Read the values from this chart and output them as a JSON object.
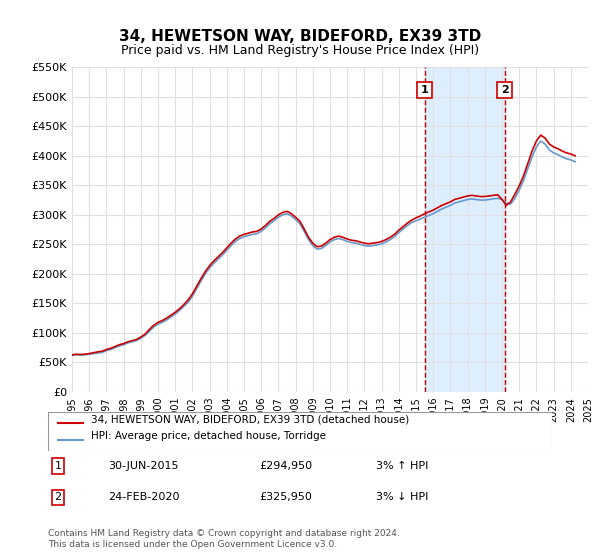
{
  "title": "34, HEWETSON WAY, BIDEFORD, EX39 3TD",
  "subtitle": "Price paid vs. HM Land Registry's House Price Index (HPI)",
  "xlabel": "",
  "ylabel": "",
  "ylim": [
    0,
    550000
  ],
  "yticks": [
    0,
    50000,
    100000,
    150000,
    200000,
    250000,
    300000,
    350000,
    400000,
    450000,
    500000,
    550000
  ],
  "ytick_labels": [
    "£0",
    "£50K",
    "£100K",
    "£150K",
    "£200K",
    "£250K",
    "£300K",
    "£350K",
    "£400K",
    "£450K",
    "£500K",
    "£550K"
  ],
  "background_color": "#ffffff",
  "plot_bg_color": "#ffffff",
  "grid_color": "#e0e0e0",
  "hpi_line_color": "#6699cc",
  "price_line_color": "#cc0000",
  "shade_color": "#ddeeff",
  "vline_color": "#cc0000",
  "marker1_date": 2015.5,
  "marker2_date": 2020.15,
  "legend_label_price": "34, HEWETSON WAY, BIDEFORD, EX39 3TD (detached house)",
  "legend_label_hpi": "HPI: Average price, detached house, Torridge",
  "table_row1": [
    "1",
    "30-JUN-2015",
    "£294,950",
    "3% ↑ HPI"
  ],
  "table_row2": [
    "2",
    "24-FEB-2020",
    "£325,950",
    "3% ↓ HPI"
  ],
  "footer": "Contains HM Land Registry data © Crown copyright and database right 2024.\nThis data is licensed under the Open Government Licence v3.0.",
  "hpi_data": {
    "years": [
      1995.0,
      1995.25,
      1995.5,
      1995.75,
      1996.0,
      1996.25,
      1996.5,
      1996.75,
      1997.0,
      1997.25,
      1997.5,
      1997.75,
      1998.0,
      1998.25,
      1998.5,
      1998.75,
      1999.0,
      1999.25,
      1999.5,
      1999.75,
      2000.0,
      2000.25,
      2000.5,
      2000.75,
      2001.0,
      2001.25,
      2001.5,
      2001.75,
      2002.0,
      2002.25,
      2002.5,
      2002.75,
      2003.0,
      2003.25,
      2003.5,
      2003.75,
      2004.0,
      2004.25,
      2004.5,
      2004.75,
      2005.0,
      2005.25,
      2005.5,
      2005.75,
      2006.0,
      2006.25,
      2006.5,
      2006.75,
      2007.0,
      2007.25,
      2007.5,
      2007.75,
      2008.0,
      2008.25,
      2008.5,
      2008.75,
      2009.0,
      2009.25,
      2009.5,
      2009.75,
      2010.0,
      2010.25,
      2010.5,
      2010.75,
      2011.0,
      2011.25,
      2011.5,
      2011.75,
      2012.0,
      2012.25,
      2012.5,
      2012.75,
      2013.0,
      2013.25,
      2013.5,
      2013.75,
      2014.0,
      2014.25,
      2014.5,
      2014.75,
      2015.0,
      2015.25,
      2015.5,
      2015.75,
      2016.0,
      2016.25,
      2016.5,
      2016.75,
      2017.0,
      2017.25,
      2017.5,
      2017.75,
      2018.0,
      2018.25,
      2018.5,
      2018.75,
      2019.0,
      2019.25,
      2019.5,
      2019.75,
      2020.0,
      2020.25,
      2020.5,
      2020.75,
      2021.0,
      2021.25,
      2021.5,
      2021.75,
      2022.0,
      2022.25,
      2022.5,
      2022.75,
      2023.0,
      2023.25,
      2023.5,
      2023.75,
      2024.0,
      2024.25
    ],
    "values": [
      62000,
      63000,
      62500,
      63000,
      64000,
      65000,
      66000,
      67000,
      70000,
      72000,
      75000,
      78000,
      80000,
      83000,
      85000,
      87000,
      91000,
      96000,
      103000,
      110000,
      115000,
      118000,
      122000,
      127000,
      132000,
      138000,
      145000,
      152000,
      162000,
      175000,
      188000,
      200000,
      210000,
      218000,
      225000,
      232000,
      240000,
      248000,
      255000,
      260000,
      263000,
      265000,
      267000,
      268000,
      272000,
      278000,
      285000,
      290000,
      296000,
      300000,
      302000,
      298000,
      292000,
      285000,
      272000,
      258000,
      248000,
      242000,
      243000,
      248000,
      254000,
      258000,
      260000,
      258000,
      255000,
      253000,
      252000,
      250000,
      248000,
      247000,
      248000,
      249000,
      251000,
      254000,
      258000,
      263000,
      270000,
      276000,
      282000,
      287000,
      290000,
      293000,
      296000,
      299000,
      302000,
      306000,
      310000,
      313000,
      316000,
      320000,
      322000,
      324000,
      326000,
      327000,
      326000,
      325000,
      325000,
      326000,
      327000,
      328000,
      326000,
      320000,
      318000,
      328000,
      342000,
      358000,
      378000,
      398000,
      415000,
      425000,
      420000,
      410000,
      405000,
      402000,
      398000,
      395000,
      393000,
      390000
    ]
  },
  "price_data": {
    "years": [
      1995.0,
      1995.25,
      1995.5,
      1995.75,
      1996.0,
      1996.25,
      1996.5,
      1996.75,
      1997.0,
      1997.25,
      1997.5,
      1997.75,
      1998.0,
      1998.25,
      1998.5,
      1998.75,
      1999.0,
      1999.25,
      1999.5,
      1999.75,
      2000.0,
      2000.25,
      2000.5,
      2000.75,
      2001.0,
      2001.25,
      2001.5,
      2001.75,
      2002.0,
      2002.25,
      2002.5,
      2002.75,
      2003.0,
      2003.25,
      2003.5,
      2003.75,
      2004.0,
      2004.25,
      2004.5,
      2004.75,
      2005.0,
      2005.25,
      2005.5,
      2005.75,
      2006.0,
      2006.25,
      2006.5,
      2006.75,
      2007.0,
      2007.25,
      2007.5,
      2007.75,
      2008.0,
      2008.25,
      2008.5,
      2008.75,
      2009.0,
      2009.25,
      2009.5,
      2009.75,
      2010.0,
      2010.25,
      2010.5,
      2010.75,
      2011.0,
      2011.25,
      2011.5,
      2011.75,
      2012.0,
      2012.25,
      2012.5,
      2012.75,
      2013.0,
      2013.25,
      2013.5,
      2013.75,
      2014.0,
      2014.25,
      2014.5,
      2014.75,
      2015.0,
      2015.25,
      2015.5,
      2015.75,
      2016.0,
      2016.25,
      2016.5,
      2016.75,
      2017.0,
      2017.25,
      2017.5,
      2017.75,
      2018.0,
      2018.25,
      2018.5,
      2018.75,
      2019.0,
      2019.25,
      2019.5,
      2019.75,
      2020.0,
      2020.25,
      2020.5,
      2020.75,
      2021.0,
      2021.25,
      2021.5,
      2021.75,
      2022.0,
      2022.25,
      2022.5,
      2022.75,
      2023.0,
      2023.25,
      2023.5,
      2023.75,
      2024.0,
      2024.25
    ],
    "values": [
      63000,
      64000,
      63500,
      64000,
      65000,
      66500,
      68000,
      69000,
      72000,
      74000,
      77000,
      80000,
      82000,
      85000,
      87000,
      89000,
      93000,
      98000,
      106000,
      113000,
      118000,
      121000,
      125000,
      130000,
      135000,
      141000,
      148000,
      156000,
      166000,
      179000,
      192000,
      204000,
      214000,
      222000,
      229000,
      236000,
      244000,
      252000,
      259000,
      264000,
      267000,
      269000,
      271000,
      272000,
      276000,
      282000,
      289000,
      294000,
      300000,
      304000,
      306000,
      302000,
      296000,
      289000,
      276000,
      262000,
      252000,
      246000,
      247000,
      252000,
      258000,
      262000,
      264000,
      262000,
      259000,
      257000,
      256000,
      254000,
      252000,
      251000,
      252000,
      253000,
      255000,
      258000,
      262000,
      267000,
      274000,
      280000,
      286000,
      291000,
      294950,
      298000,
      302000,
      305000,
      308000,
      312000,
      316000,
      319000,
      322000,
      326000,
      328000,
      330000,
      332000,
      333000,
      332000,
      331000,
      331000,
      332000,
      333000,
      334000,
      325950,
      316000,
      322000,
      335000,
      349000,
      366000,
      387000,
      408000,
      425000,
      435000,
      430000,
      420000,
      415000,
      412000,
      408000,
      405000,
      403000,
      400000
    ]
  }
}
